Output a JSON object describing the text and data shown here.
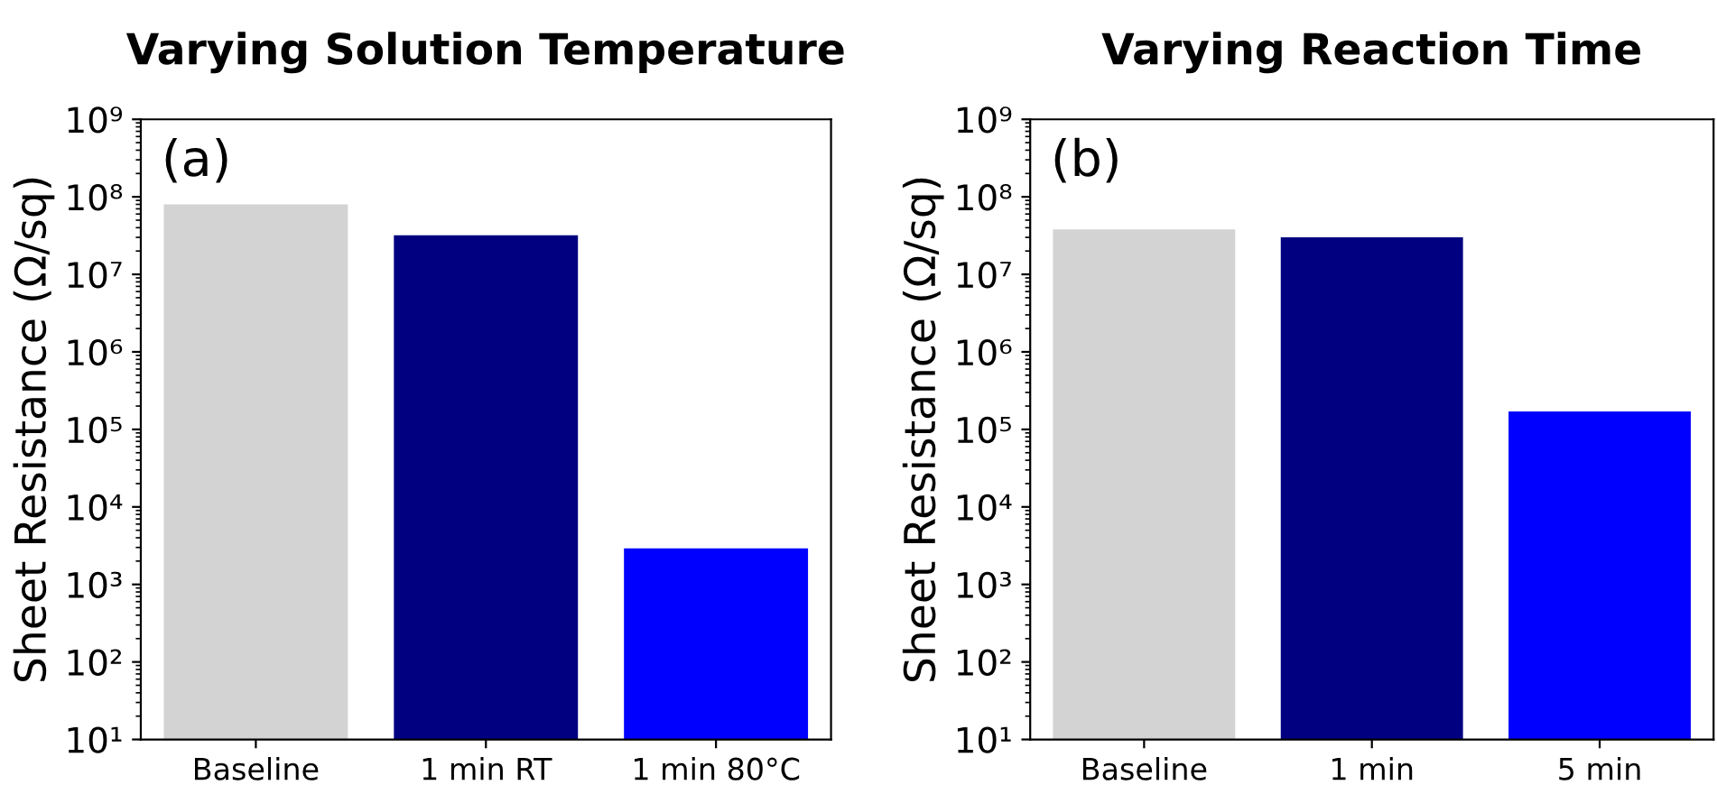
{
  "chart_data": [
    {
      "type": "bar",
      "title": "Varying Solution Temperature",
      "ylabel": "Sheet Resistance (Ω/sq)",
      "annotations": [
        "(a)"
      ],
      "categories": [
        "Baseline",
        "1 min RT",
        "1 min 80°C"
      ],
      "values": [
        80000000.0,
        32000000.0,
        2900.0
      ],
      "colors": [
        "#d3d3d3",
        "#000080",
        "#0000ff"
      ],
      "log": "y",
      "ylim": [
        10,
        1000000000.0
      ],
      "yticks": [
        {
          "value": 10,
          "label": "10¹"
        },
        {
          "value": 100,
          "label": "10²"
        },
        {
          "value": 1000,
          "label": "10³"
        },
        {
          "value": 10000.0,
          "label": "10⁴"
        },
        {
          "value": 100000.0,
          "label": "10⁵"
        },
        {
          "value": 1000000.0,
          "label": "10⁶"
        },
        {
          "value": 10000000.0,
          "label": "10⁷"
        },
        {
          "value": 100000000.0,
          "label": "10⁸"
        },
        {
          "value": 1000000000.0,
          "label": "10⁹"
        }
      ]
    },
    {
      "type": "bar",
      "title": "Varying Reaction Time",
      "ylabel": "Sheet Resistance (Ω/sq)",
      "annotations": [
        "(b)"
      ],
      "categories": [
        "Baseline",
        "1 min",
        "5 min"
      ],
      "values": [
        38000000.0,
        30000000.0,
        170000.0
      ],
      "colors": [
        "#d3d3d3",
        "#000080",
        "#0000ff"
      ],
      "log": "y",
      "ylim": [
        10,
        1000000000.0
      ],
      "yticks": [
        {
          "value": 10,
          "label": "10¹"
        },
        {
          "value": 100,
          "label": "10²"
        },
        {
          "value": 1000,
          "label": "10³"
        },
        {
          "value": 10000.0,
          "label": "10⁴"
        },
        {
          "value": 100000.0,
          "label": "10⁵"
        },
        {
          "value": 1000000.0,
          "label": "10⁶"
        },
        {
          "value": 10000000.0,
          "label": "10⁷"
        },
        {
          "value": 100000000.0,
          "label": "10⁸"
        },
        {
          "value": 1000000000.0,
          "label": "10⁹"
        }
      ]
    }
  ]
}
